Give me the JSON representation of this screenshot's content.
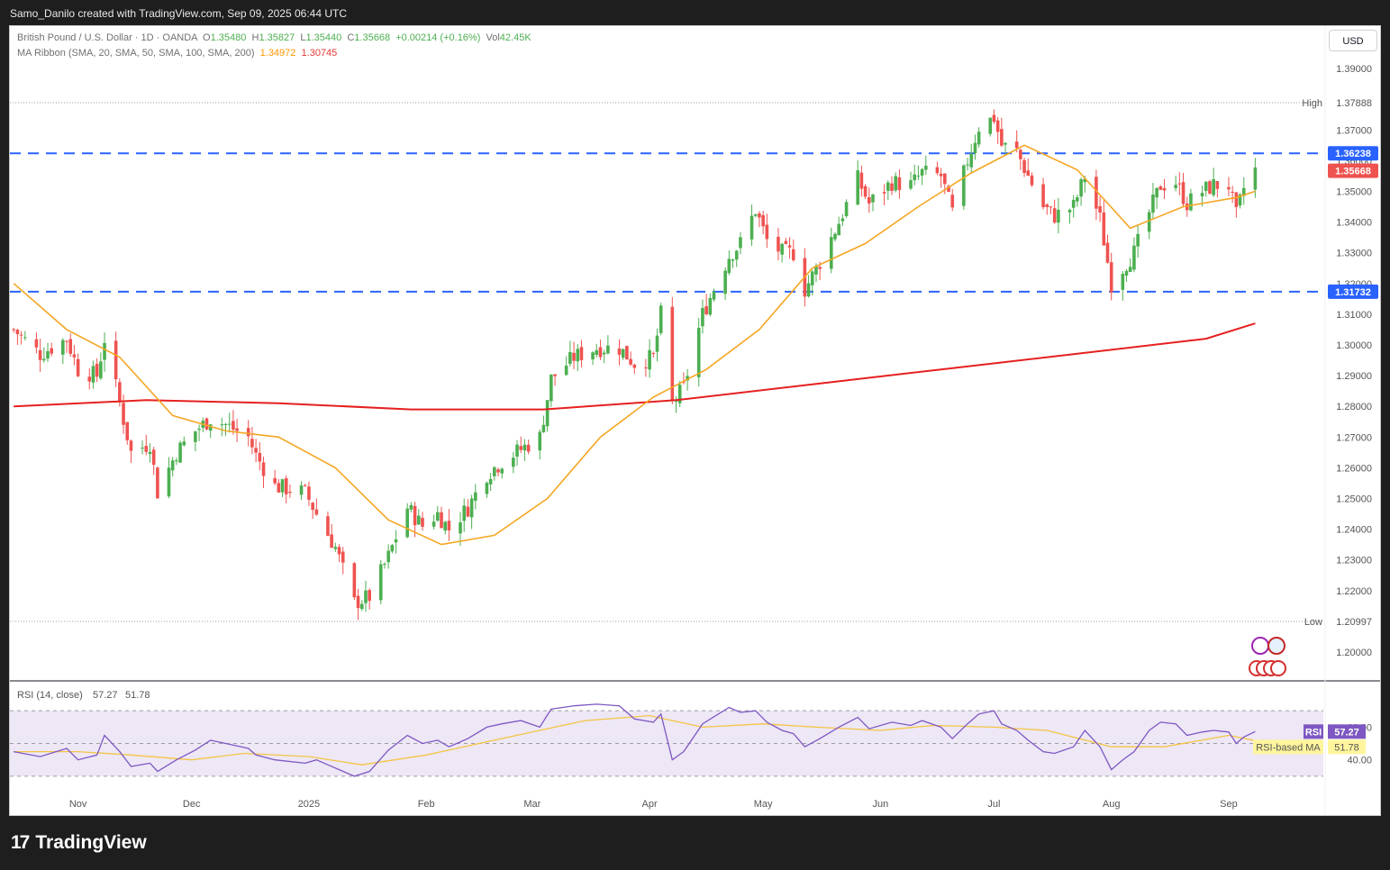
{
  "header": {
    "attribution": "Samo_Danilo created with TradingView.com, Sep 09, 2025 06:44 UTC"
  },
  "legend": {
    "symbol": "British Pound / U.S. Dollar · 1D · OANDA",
    "open_label": "O",
    "open": "1.35480",
    "high_label": "H",
    "high": "1.35827",
    "low_label": "L",
    "low": "1.35440",
    "close_label": "C",
    "close": "1.35668",
    "change": "+0.00214 (+0.16%)",
    "vol_label": "Vol",
    "vol": "42.45K",
    "ma_title": "MA Ribbon (SMA, 20, SMA, 50, SMA, 100, SMA, 200)",
    "ma_val1": "1.34972",
    "ma_val2": "1.30745"
  },
  "currency_button": "USD",
  "brand": "TradingView",
  "colors": {
    "up": "#4caf50",
    "down": "#ef5350",
    "ma_short": "#f5a623",
    "ma_long": "#e62020",
    "level_line": "#2962ff",
    "rsi_line": "#7e57c2",
    "rsi_ma": "#f5c542",
    "rsi_band": "#ede7f6"
  },
  "chart_data": [
    {
      "type": "candlestick",
      "instrument": "British Pound / U.S. Dollar",
      "ylim": [
        1.195,
        1.395
      ],
      "price_ticks": [
        "1.39000",
        "1.37000",
        "1.36000",
        "1.35000",
        "1.34000",
        "1.33000",
        "1.32000",
        "1.31000",
        "1.30000",
        "1.29000",
        "1.28000",
        "1.27000",
        "1.26000",
        "1.25000",
        "1.24000",
        "1.23000",
        "1.22000",
        "1.20000"
      ],
      "x_labels": [
        "Nov",
        "Dec",
        "2025",
        "Feb",
        "Mar",
        "Apr",
        "May",
        "Jun",
        "Jul",
        "Aug",
        "Sep"
      ],
      "horizontal_levels": [
        1.36238,
        1.31732
      ],
      "high_label": "High",
      "high_value": "1.37888",
      "low_label": "Low",
      "low_value": "1.20997",
      "price_tag": "1.35668",
      "level_tags": [
        "1.36238",
        "1.31732"
      ],
      "series": [
        {
          "kind": "close_path",
          "points": [
            [
              "2024-10-15",
              1.305
            ],
            [
              "2024-10-22",
              1.297
            ],
            [
              "2024-10-29",
              1.302
            ],
            [
              "2024-11-01",
              1.292
            ],
            [
              "2024-11-06",
              1.29
            ],
            [
              "2024-11-08",
              1.302
            ],
            [
              "2024-11-12",
              1.281
            ],
            [
              "2024-11-15",
              1.265
            ],
            [
              "2024-11-20",
              1.268
            ],
            [
              "2024-11-22",
              1.252
            ],
            [
              "2024-11-27",
              1.265
            ],
            [
              "2024-12-02",
              1.272
            ],
            [
              "2024-12-06",
              1.276
            ],
            [
              "2024-12-10",
              1.274
            ],
            [
              "2024-12-16",
              1.27
            ],
            [
              "2024-12-18",
              1.264
            ],
            [
              "2024-12-23",
              1.254
            ],
            [
              "2024-12-31",
              1.252
            ],
            [
              "2025-01-03",
              1.245
            ],
            [
              "2025-01-08",
              1.234
            ],
            [
              "2025-01-13",
              1.216
            ],
            [
              "2025-01-17",
              1.218
            ],
            [
              "2025-01-22",
              1.231
            ],
            [
              "2025-01-27",
              1.247
            ],
            [
              "2025-01-31",
              1.241
            ],
            [
              "2025-02-04",
              1.245
            ],
            [
              "2025-02-07",
              1.24
            ],
            [
              "2025-02-12",
              1.247
            ],
            [
              "2025-02-17",
              1.258
            ],
            [
              "2025-02-21",
              1.262
            ],
            [
              "2025-02-26",
              1.266
            ],
            [
              "2025-03-03",
              1.27
            ],
            [
              "2025-03-06",
              1.289
            ],
            [
              "2025-03-12",
              1.296
            ],
            [
              "2025-03-18",
              1.299
            ],
            [
              "2025-03-24",
              1.299
            ],
            [
              "2025-03-28",
              1.294
            ],
            [
              "2025-04-02",
              1.296
            ],
            [
              "2025-04-04",
              1.31
            ],
            [
              "2025-04-07",
              1.281
            ],
            [
              "2025-04-10",
              1.286
            ],
            [
              "2025-04-15",
              1.31
            ],
            [
              "2025-04-22",
              1.329
            ],
            [
              "2025-04-25",
              1.333
            ],
            [
              "2025-04-29",
              1.344
            ],
            [
              "2025-05-02",
              1.334
            ],
            [
              "2025-05-06",
              1.33
            ],
            [
              "2025-05-09",
              1.33
            ],
            [
              "2025-05-12",
              1.318
            ],
            [
              "2025-05-16",
              1.327
            ],
            [
              "2025-05-21",
              1.34
            ],
            [
              "2025-05-26",
              1.354
            ],
            [
              "2025-05-29",
              1.346
            ],
            [
              "2025-06-04",
              1.353
            ],
            [
              "2025-06-09",
              1.352
            ],
            [
              "2025-06-12",
              1.356
            ],
            [
              "2025-06-17",
              1.355
            ],
            [
              "2025-06-20",
              1.343
            ],
            [
              "2025-06-24",
              1.36
            ],
            [
              "2025-06-27",
              1.371
            ],
            [
              "2025-07-01",
              1.374
            ],
            [
              "2025-07-03",
              1.365
            ],
            [
              "2025-07-07",
              1.363
            ],
            [
              "2025-07-10",
              1.355
            ],
            [
              "2025-07-14",
              1.345
            ],
            [
              "2025-07-17",
              1.342
            ],
            [
              "2025-07-22",
              1.345
            ],
            [
              "2025-07-25",
              1.355
            ],
            [
              "2025-07-29",
              1.341
            ],
            [
              "2025-08-01",
              1.32
            ],
            [
              "2025-08-04",
              1.325
            ],
            [
              "2025-08-07",
              1.33
            ],
            [
              "2025-08-11",
              1.343
            ],
            [
              "2025-08-14",
              1.352
            ],
            [
              "2025-08-18",
              1.353
            ],
            [
              "2025-08-21",
              1.346
            ],
            [
              "2025-08-25",
              1.35
            ],
            [
              "2025-08-28",
              1.352
            ],
            [
              "2025-09-01",
              1.352
            ],
            [
              "2025-09-03",
              1.342
            ],
            [
              "2025-09-05",
              1.351
            ],
            [
              "2025-09-08",
              1.357
            ]
          ]
        },
        {
          "name": "SMA 20",
          "points": [
            [
              "2024-10-15",
              1.32
            ],
            [
              "2024-10-29",
              1.305
            ],
            [
              "2024-11-12",
              1.296
            ],
            [
              "2024-11-26",
              1.277
            ],
            [
              "2024-12-10",
              1.272
            ],
            [
              "2024-12-24",
              1.27
            ],
            [
              "2025-01-08",
              1.26
            ],
            [
              "2025-01-22",
              1.243
            ],
            [
              "2025-02-05",
              1.235
            ],
            [
              "2025-02-19",
              1.238
            ],
            [
              "2025-03-05",
              1.25
            ],
            [
              "2025-03-19",
              1.27
            ],
            [
              "2025-04-02",
              1.283
            ],
            [
              "2025-04-16",
              1.292
            ],
            [
              "2025-04-30",
              1.305
            ],
            [
              "2025-05-14",
              1.325
            ],
            [
              "2025-05-28",
              1.333
            ],
            [
              "2025-06-11",
              1.345
            ],
            [
              "2025-06-25",
              1.356
            ],
            [
              "2025-07-09",
              1.365
            ],
            [
              "2025-07-23",
              1.357
            ],
            [
              "2025-08-06",
              1.338
            ],
            [
              "2025-08-20",
              1.345
            ],
            [
              "2025-09-03",
              1.348
            ],
            [
              "2025-09-08",
              1.35
            ]
          ]
        },
        {
          "name": "SMA 200",
          "points": [
            [
              "2024-10-15",
              1.28
            ],
            [
              "2024-11-19",
              1.282
            ],
            [
              "2024-12-24",
              1.281
            ],
            [
              "2025-01-28",
              1.279
            ],
            [
              "2025-03-04",
              1.279
            ],
            [
              "2025-04-08",
              1.282
            ],
            [
              "2025-05-13",
              1.287
            ],
            [
              "2025-06-17",
              1.292
            ],
            [
              "2025-07-22",
              1.297
            ],
            [
              "2025-08-26",
              1.302
            ],
            [
              "2025-09-08",
              1.307
            ]
          ]
        }
      ]
    },
    {
      "type": "line",
      "indicator": "RSI",
      "title": "RSI (14, close)",
      "rsi_value": "57.27",
      "rsi_ma_value": "51.78",
      "ylim": [
        25,
        80
      ],
      "y_ticks": [
        "60.00",
        "40.00"
      ],
      "rsi_tag_label": "RSI",
      "ma_tag_label": "RSI-based MA",
      "series": [
        {
          "name": "RSI",
          "points": [
            [
              "2024-10-15",
              45
            ],
            [
              "2024-10-22",
              42
            ],
            [
              "2024-10-29",
              47
            ],
            [
              "2024-11-01",
              40
            ],
            [
              "2024-11-06",
              43
            ],
            [
              "2024-11-08",
              55
            ],
            [
              "2024-11-12",
              45
            ],
            [
              "2024-11-15",
              36
            ],
            [
              "2024-11-20",
              38
            ],
            [
              "2024-11-22",
              33
            ],
            [
              "2024-11-27",
              40
            ],
            [
              "2024-12-02",
              46
            ],
            [
              "2024-12-06",
              52
            ],
            [
              "2024-12-10",
              50
            ],
            [
              "2024-12-16",
              47
            ],
            [
              "2024-12-18",
              43
            ],
            [
              "2024-12-23",
              40
            ],
            [
              "2024-12-31",
              38
            ],
            [
              "2025-01-03",
              40
            ],
            [
              "2025-01-08",
              35
            ],
            [
              "2025-01-13",
              30
            ],
            [
              "2025-01-17",
              33
            ],
            [
              "2025-01-22",
              46
            ],
            [
              "2025-01-27",
              55
            ],
            [
              "2025-01-31",
              50
            ],
            [
              "2025-02-04",
              52
            ],
            [
              "2025-02-07",
              48
            ],
            [
              "2025-02-12",
              53
            ],
            [
              "2025-02-17",
              60
            ],
            [
              "2025-02-21",
              62
            ],
            [
              "2025-02-26",
              64
            ],
            [
              "2025-03-03",
              60
            ],
            [
              "2025-03-06",
              71
            ],
            [
              "2025-03-12",
              73
            ],
            [
              "2025-03-18",
              74
            ],
            [
              "2025-03-24",
              73
            ],
            [
              "2025-03-28",
              65
            ],
            [
              "2025-04-02",
              63
            ],
            [
              "2025-04-04",
              68
            ],
            [
              "2025-04-07",
              40
            ],
            [
              "2025-04-10",
              45
            ],
            [
              "2025-04-15",
              62
            ],
            [
              "2025-04-22",
              72
            ],
            [
              "2025-04-25",
              69
            ],
            [
              "2025-04-29",
              70
            ],
            [
              "2025-05-02",
              63
            ],
            [
              "2025-05-06",
              58
            ],
            [
              "2025-05-09",
              56
            ],
            [
              "2025-05-12",
              48
            ],
            [
              "2025-05-16",
              53
            ],
            [
              "2025-05-21",
              60
            ],
            [
              "2025-05-26",
              66
            ],
            [
              "2025-05-29",
              59
            ],
            [
              "2025-06-04",
              63
            ],
            [
              "2025-06-09",
              61
            ],
            [
              "2025-06-12",
              64
            ],
            [
              "2025-06-17",
              60
            ],
            [
              "2025-06-20",
              53
            ],
            [
              "2025-06-24",
              62
            ],
            [
              "2025-06-27",
              68
            ],
            [
              "2025-07-01",
              70
            ],
            [
              "2025-07-03",
              62
            ],
            [
              "2025-07-07",
              58
            ],
            [
              "2025-07-10",
              52
            ],
            [
              "2025-07-14",
              45
            ],
            [
              "2025-07-17",
              44
            ],
            [
              "2025-07-22",
              48
            ],
            [
              "2025-07-25",
              58
            ],
            [
              "2025-07-29",
              48
            ],
            [
              "2025-08-01",
              34
            ],
            [
              "2025-08-04",
              40
            ],
            [
              "2025-08-07",
              45
            ],
            [
              "2025-08-11",
              58
            ],
            [
              "2025-08-14",
              63
            ],
            [
              "2025-08-18",
              62
            ],
            [
              "2025-08-21",
              55
            ],
            [
              "2025-08-25",
              57
            ],
            [
              "2025-08-28",
              58
            ],
            [
              "2025-09-01",
              57
            ],
            [
              "2025-09-03",
              50
            ],
            [
              "2025-09-05",
              54
            ],
            [
              "2025-09-08",
              57.27
            ]
          ]
        },
        {
          "name": "RSI-based MA",
          "points": [
            [
              "2024-10-15",
              45
            ],
            [
              "2024-11-01",
              45
            ],
            [
              "2024-11-15",
              43
            ],
            [
              "2024-12-01",
              40
            ],
            [
              "2024-12-15",
              44
            ],
            [
              "2025-01-01",
              42
            ],
            [
              "2025-01-15",
              37
            ],
            [
              "2025-02-01",
              43
            ],
            [
              "2025-02-15",
              50
            ],
            [
              "2025-03-01",
              57
            ],
            [
              "2025-03-15",
              64
            ],
            [
              "2025-04-01",
              67
            ],
            [
              "2025-04-15",
              60
            ],
            [
              "2025-05-01",
              62
            ],
            [
              "2025-05-15",
              60
            ],
            [
              "2025-06-01",
              58
            ],
            [
              "2025-06-15",
              61
            ],
            [
              "2025-07-01",
              60
            ],
            [
              "2025-07-15",
              58
            ],
            [
              "2025-08-01",
              48
            ],
            [
              "2025-08-15",
              48
            ],
            [
              "2025-09-01",
              55
            ],
            [
              "2025-09-08",
              51.78
            ]
          ]
        }
      ]
    }
  ]
}
